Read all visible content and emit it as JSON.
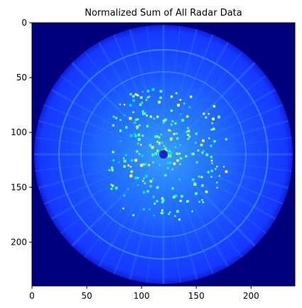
{
  "chart_data": {
    "type": "heatmap",
    "title": "Normalized Sum of All Radar Data",
    "xlabel": "",
    "ylabel": "",
    "xlim": [
      0,
      240
    ],
    "ylim": [
      240,
      0
    ],
    "x_ticks": [
      0,
      50,
      100,
      150,
      200
    ],
    "y_ticks": [
      0,
      50,
      100,
      150,
      200
    ],
    "colormap": "jet",
    "background_color": "#00007f",
    "grid": false,
    "legend": "none",
    "data_description": {
      "center": [
        120,
        120
      ],
      "outer_ring_radius": 118,
      "middle_ring_radius": 95,
      "inner_ring_radius": 75,
      "hotspot_center_radius": 4,
      "hotspots_x_range": [
        70,
        180
      ],
      "hotspots_y_range": [
        60,
        190
      ]
    }
  }
}
